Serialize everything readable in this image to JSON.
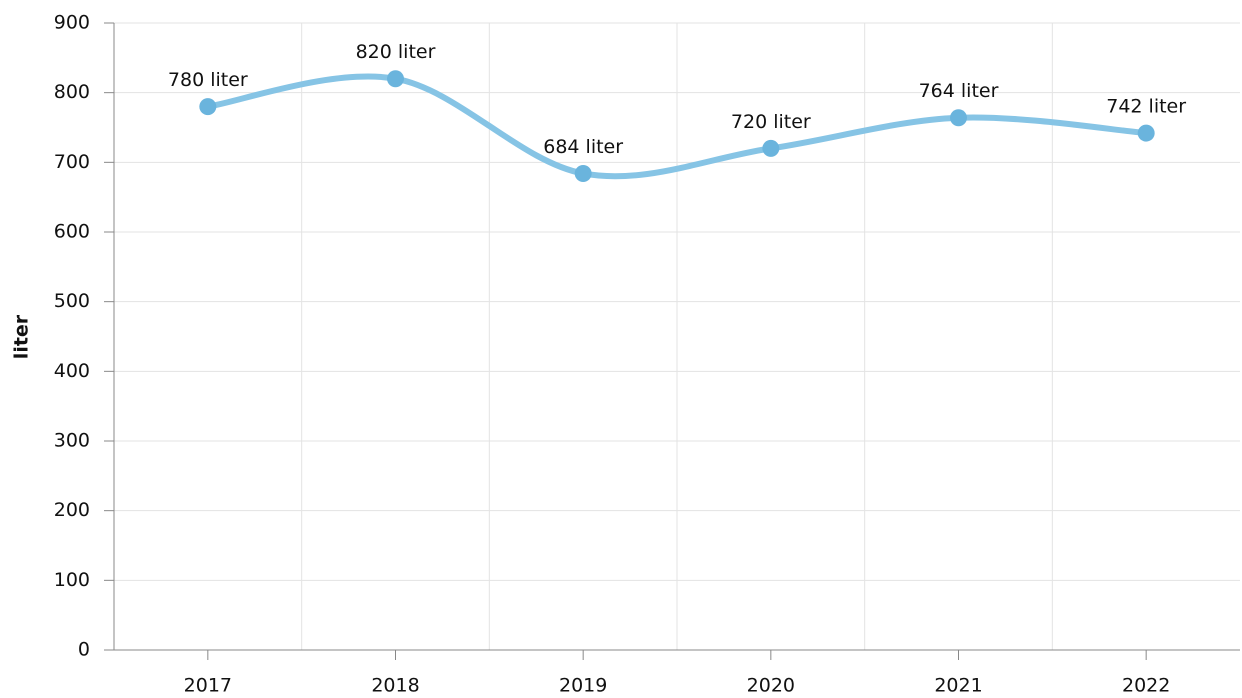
{
  "chart_data": {
    "type": "line",
    "y_label": "liter",
    "categories": [
      "2017",
      "2018",
      "2019",
      "2020",
      "2021",
      "2022"
    ],
    "series": [
      {
        "color": "#6ab4dd",
        "values": [
          780,
          820,
          684,
          720,
          764,
          742
        ],
        "value_labels": [
          "780 liter",
          "820 liter",
          "684 liter",
          "720 liter",
          "764 liter",
          "742 liter"
        ]
      }
    ],
    "ylim": [
      0,
      900
    ],
    "yticks": [
      0,
      100,
      200,
      300,
      400,
      500,
      600,
      700,
      800,
      900
    ],
    "grid": true,
    "smooth": true
  }
}
